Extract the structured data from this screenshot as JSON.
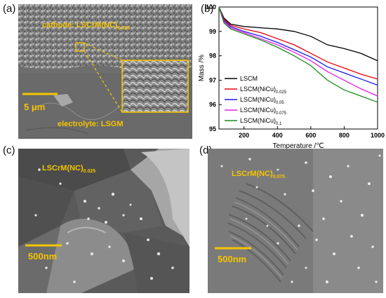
{
  "panels": {
    "a": {
      "letter": "(a)",
      "cathode_label": "cathode: LSCrM(NC)",
      "cathode_sub": "0.025",
      "electrolyte_label": "electrolyte: LSGM",
      "scale_bar": "5 μm"
    },
    "b": {
      "letter": "(b)"
    },
    "c": {
      "letter": "(c)",
      "sample_label": "LSCrM(NC)",
      "sample_sub": "0.025",
      "scale_bar": "500nm"
    },
    "d": {
      "letter": "(d)",
      "sample_label": "LSCrM(NC)",
      "sample_sub": "0.075",
      "scale_bar": "500nm"
    }
  },
  "colors": {
    "annotation_yellow": "#f5c400",
    "sem_dark": "#3c3c3c",
    "sem_light": "#9a9a9a"
  },
  "chart_data": {
    "type": "line",
    "xlabel": "Temperature /℃",
    "ylabel": "Mass /%",
    "xlim": [
      50,
      1000
    ],
    "ylim": [
      95,
      100
    ],
    "xticks": [
      200,
      400,
      600,
      800,
      1000
    ],
    "yticks": [
      95,
      96,
      97,
      98,
      99,
      100
    ],
    "grid": false,
    "legend_position": "bottom-left",
    "series": [
      {
        "name": "LSCM",
        "sub": "",
        "color": "#000000",
        "x": [
          50,
          80,
          120,
          200,
          300,
          400,
          500,
          600,
          700,
          800,
          900,
          1000
        ],
        "y": [
          100,
          99.55,
          99.3,
          99.2,
          99.15,
          99.1,
          99.0,
          98.8,
          98.45,
          98.3,
          98.1,
          97.8
        ]
      },
      {
        "name": "LSCM(NiCu)",
        "sub": "0.025",
        "color": "#e8000b",
        "x": [
          50,
          80,
          120,
          200,
          300,
          400,
          500,
          600,
          700,
          800,
          900,
          1000
        ],
        "y": [
          100,
          99.5,
          99.25,
          99.1,
          98.95,
          98.7,
          98.45,
          98.1,
          97.75,
          97.5,
          97.25,
          97.05
        ]
      },
      {
        "name": "LSCM(NiCu)",
        "sub": "0.05",
        "color": "#1a1ae6",
        "x": [
          50,
          80,
          120,
          200,
          300,
          400,
          500,
          600,
          700,
          800,
          900,
          1000
        ],
        "y": [
          100,
          99.45,
          99.2,
          99.0,
          98.8,
          98.55,
          98.25,
          97.95,
          97.55,
          97.3,
          97.05,
          96.8
        ]
      },
      {
        "name": "LSCM(NiCu)",
        "sub": "0.075",
        "color": "#e61ee6",
        "x": [
          50,
          80,
          120,
          200,
          300,
          400,
          500,
          600,
          700,
          800,
          900,
          1000
        ],
        "y": [
          100,
          99.4,
          99.15,
          98.95,
          98.7,
          98.45,
          98.15,
          97.8,
          97.35,
          97.0,
          96.65,
          96.35
        ]
      },
      {
        "name": "LSCM(NiCu)",
        "sub": "0.1",
        "color": "#1a8c1a",
        "x": [
          50,
          80,
          120,
          200,
          300,
          400,
          500,
          600,
          700,
          800,
          900,
          1000
        ],
        "y": [
          100,
          99.35,
          99.1,
          98.9,
          98.65,
          98.35,
          98.0,
          97.6,
          97.0,
          96.6,
          96.35,
          96.1
        ]
      }
    ]
  }
}
